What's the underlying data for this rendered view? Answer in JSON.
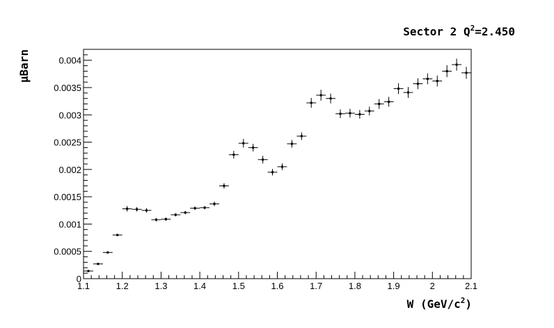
{
  "chart_data": {
    "type": "scatter",
    "title": {
      "prefix": "Sector 2 Q",
      "sup": "2",
      "suffix": "=2.450"
    },
    "xlabel": {
      "prefix": "W  (GeV/c",
      "sup": "2",
      "suffix": ")"
    },
    "ylabel": "µBarn",
    "xlim": [
      1.1,
      2.1
    ],
    "ylim": [
      0,
      0.0042
    ],
    "x_ticks": [
      1.1,
      1.2,
      1.3,
      1.4,
      1.5,
      1.6,
      1.7,
      1.8,
      1.9,
      2,
      2.1
    ],
    "x_tick_labels": [
      "1.1",
      "1.2",
      "1.3",
      "1.4",
      "1.5",
      "1.6",
      "1.7",
      "1.8",
      "1.9",
      "2",
      "2.1"
    ],
    "y_ticks": [
      0,
      0.0005,
      0.001,
      0.0015,
      0.002,
      0.0025,
      0.003,
      0.0035,
      0.004
    ],
    "y_tick_labels": [
      "0",
      "0.0005",
      "0.001",
      "0.0015",
      "0.002",
      "0.0025",
      "0.003",
      "0.0035",
      "0.004"
    ],
    "bin_width": 0.025,
    "grid": false,
    "marker_color": "#000000",
    "series": [
      {
        "x": [
          1.1125,
          1.1375,
          1.1625,
          1.1875,
          1.2125,
          1.2375,
          1.2625,
          1.2875,
          1.3125,
          1.3375,
          1.3625,
          1.3875,
          1.4125,
          1.4375,
          1.4625,
          1.4875,
          1.5125,
          1.5375,
          1.5625,
          1.5875,
          1.6125,
          1.6375,
          1.6625,
          1.6875,
          1.7125,
          1.7375,
          1.7625,
          1.7875,
          1.8125,
          1.8375,
          1.8625,
          1.8875,
          1.9125,
          1.9375,
          1.9625,
          1.9875,
          2.0125,
          2.0375,
          2.0625,
          2.0875
        ],
        "y": [
          0.00014,
          0.00027,
          0.00048,
          0.0008,
          0.00128,
          0.00127,
          0.00125,
          0.00108,
          0.00109,
          0.00117,
          0.00121,
          0.00129,
          0.0013,
          0.00137,
          0.0017,
          0.00227,
          0.00248,
          0.0024,
          0.00218,
          0.00195,
          0.00205,
          0.00247,
          0.00261,
          0.00322,
          0.00336,
          0.0033,
          0.00302,
          0.00303,
          0.00301,
          0.00307,
          0.0032,
          0.00324,
          0.00348,
          0.00341,
          0.00357,
          0.00366,
          0.00362,
          0.0038,
          0.00392,
          0.00377
        ],
        "yerr": [
          2e-05,
          2e-05,
          2e-05,
          2e-05,
          5e-05,
          4e-05,
          4e-05,
          3e-05,
          3e-05,
          3e-05,
          3e-05,
          3e-05,
          3e-05,
          4e-05,
          5e-05,
          7e-05,
          8e-05,
          7e-05,
          7e-05,
          6e-05,
          6e-05,
          7e-05,
          7e-05,
          9e-05,
          0.0001,
          9e-05,
          8e-05,
          8e-05,
          8e-05,
          8e-05,
          9e-05,
          9e-05,
          0.0001,
          0.0001,
          0.0001,
          0.0001,
          0.0001,
          0.00011,
          0.00011,
          0.00011
        ]
      }
    ]
  }
}
